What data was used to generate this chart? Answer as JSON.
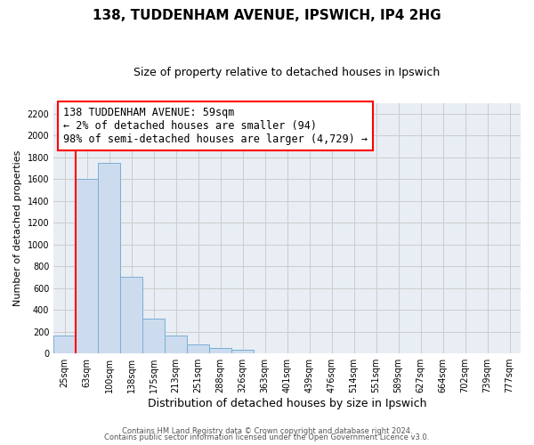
{
  "title": "138, TUDDENHAM AVENUE, IPSWICH, IP4 2HG",
  "subtitle": "Size of property relative to detached houses in Ipswich",
  "xlabel": "Distribution of detached houses by size in Ipswich",
  "ylabel": "Number of detached properties",
  "bar_labels": [
    "25sqm",
    "63sqm",
    "100sqm",
    "138sqm",
    "175sqm",
    "213sqm",
    "251sqm",
    "288sqm",
    "326sqm",
    "363sqm",
    "401sqm",
    "439sqm",
    "476sqm",
    "514sqm",
    "551sqm",
    "589sqm",
    "627sqm",
    "664sqm",
    "702sqm",
    "739sqm",
    "777sqm"
  ],
  "bar_values": [
    160,
    1600,
    1750,
    700,
    320,
    160,
    85,
    50,
    30,
    0,
    0,
    0,
    0,
    0,
    0,
    0,
    0,
    0,
    0,
    0,
    0
  ],
  "bar_color": "#ccdcee",
  "bar_edge_color": "#7aaed6",
  "vline_x_index": 1,
  "vline_color": "red",
  "annotation_text": "138 TUDDENHAM AVENUE: 59sqm\n← 2% of detached houses are smaller (94)\n98% of semi-detached houses are larger (4,729) →",
  "annotation_box_edge_color": "red",
  "annotation_fontsize": 8.5,
  "ylim": [
    0,
    2300
  ],
  "yticks": [
    0,
    200,
    400,
    600,
    800,
    1000,
    1200,
    1400,
    1600,
    1800,
    2000,
    2200
  ],
  "grid_color": "#cccccc",
  "background_color": "#e8eef4",
  "footer_line1": "Contains HM Land Registry data © Crown copyright and database right 2024.",
  "footer_line2": "Contains public sector information licensed under the Open Government Licence v3.0.",
  "title_fontsize": 11,
  "subtitle_fontsize": 9,
  "xlabel_fontsize": 9,
  "ylabel_fontsize": 8,
  "tick_fontsize": 7
}
